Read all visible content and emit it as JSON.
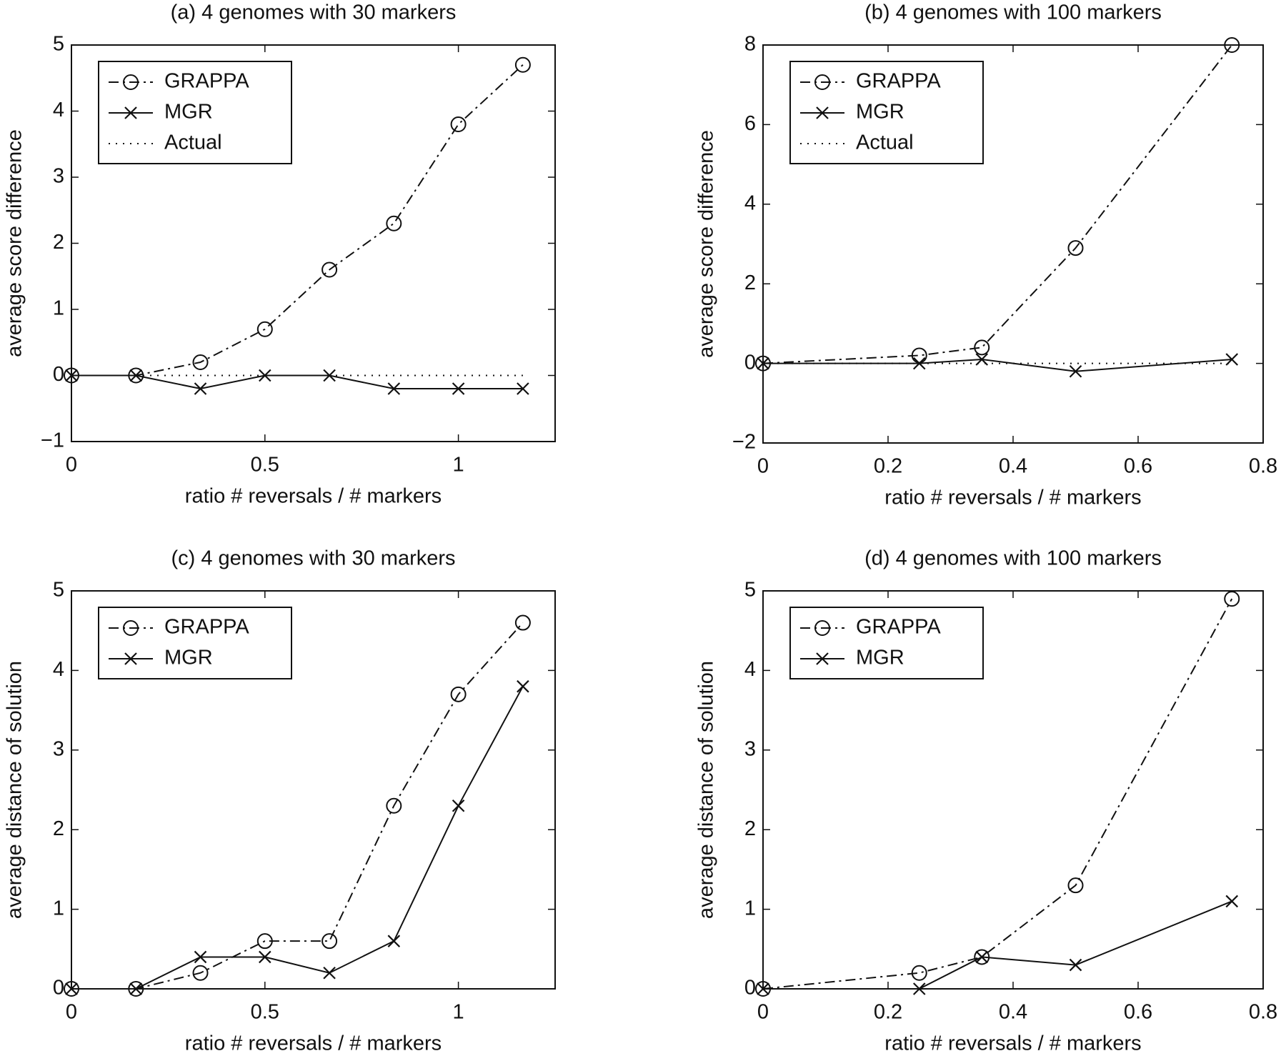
{
  "chart_data": [
    {
      "type": "line",
      "title": "(a)  4 genomes with 30 markers",
      "x_label": "ratio # reversals / # markers",
      "y_label": "average score difference",
      "x": [
        0,
        0.1667,
        0.3333,
        0.5,
        0.6667,
        0.8333,
        1,
        1.1667
      ],
      "series": [
        {
          "name": "GRAPPA",
          "color": "#111111",
          "linestyle": "dashdot",
          "marker": "circle",
          "values": [
            0,
            0,
            0.2,
            0.7,
            1.6,
            2.3,
            3.8,
            4.7
          ]
        },
        {
          "name": "MGR",
          "color": "#111111",
          "linestyle": "solid",
          "marker": "x",
          "values": [
            0,
            0,
            -0.2,
            0,
            0,
            -0.2,
            -0.2,
            -0.2
          ]
        },
        {
          "name": "Actual",
          "color": "#111111",
          "linestyle": "dotted",
          "marker": "none",
          "values": [
            0,
            0,
            0,
            0,
            0,
            0,
            0,
            0
          ]
        }
      ],
      "xlim": [
        0,
        1.25
      ],
      "xticks": [
        0,
        0.5,
        1
      ],
      "ylim": [
        -1,
        5
      ],
      "yticks": [
        {
          "value": -1,
          "label": "−1"
        },
        0,
        1,
        2,
        3,
        4,
        5
      ],
      "legend": "upper left"
    },
    {
      "type": "line",
      "title": "(b)  4 genomes with 100 markers",
      "x_label": "ratio # reversals / # markers",
      "y_label": "average score difference",
      "x": [
        0,
        0.25,
        0.35,
        0.5,
        0.75
      ],
      "series": [
        {
          "name": "GRAPPA",
          "color": "#111111",
          "linestyle": "dashdot",
          "marker": "circle",
          "values": [
            0,
            0.2,
            0.4,
            2.9,
            8
          ]
        },
        {
          "name": "MGR",
          "color": "#111111",
          "linestyle": "solid",
          "marker": "x",
          "values": [
            0,
            0,
            0.1,
            -0.2,
            0.1
          ]
        },
        {
          "name": "Actual",
          "color": "#111111",
          "linestyle": "dotted",
          "marker": "none",
          "values": [
            0,
            0,
            0,
            0,
            0
          ]
        }
      ],
      "xlim": [
        0,
        0.8
      ],
      "xticks": [
        0,
        0.2,
        0.4,
        0.6,
        0.8
      ],
      "ylim": [
        -2,
        8
      ],
      "yticks": [
        {
          "value": -2,
          "label": "−2"
        },
        0,
        2,
        4,
        6,
        8
      ],
      "legend": "upper left"
    },
    {
      "type": "line",
      "title": "(c)  4 genomes with 30 markers",
      "x_label": "ratio # reversals / # markers",
      "y_label": "average distance of solution",
      "x": [
        0,
        0.1667,
        0.3333,
        0.5,
        0.6667,
        0.8333,
        1,
        1.1667
      ],
      "series": [
        {
          "name": "GRAPPA",
          "color": "#111111",
          "linestyle": "dashdot",
          "marker": "circle",
          "values": [
            0,
            0,
            0.2,
            0.6,
            0.6,
            2.3,
            3.7,
            4.6
          ]
        },
        {
          "name": "MGR",
          "color": "#111111",
          "linestyle": "solid",
          "marker": "x",
          "values": [
            0,
            0,
            0.4,
            0.4,
            0.2,
            0.6,
            2.3,
            3.8
          ]
        }
      ],
      "xlim": [
        0,
        1.25
      ],
      "xticks": [
        0,
        0.5,
        1
      ],
      "ylim": [
        0,
        5
      ],
      "yticks": [
        0,
        1,
        2,
        3,
        4,
        5
      ],
      "legend": "upper left"
    },
    {
      "type": "line",
      "title": "(d)  4 genomes with 100 markers",
      "x_label": "ratio # reversals / # markers",
      "y_label": "average distance of solution",
      "x": [
        0,
        0.25,
        0.35,
        0.5,
        0.75
      ],
      "series": [
        {
          "name": "GRAPPA",
          "color": "#111111",
          "linestyle": "dashdot",
          "marker": "circle",
          "values": [
            0,
            0.2,
            0.4,
            1.3,
            4.9
          ]
        },
        {
          "name": "MGR",
          "color": "#111111",
          "linestyle": "solid",
          "marker": "x",
          "values": [
            0,
            0,
            0.4,
            0.3,
            1.1
          ]
        }
      ],
      "xlim": [
        0,
        0.8
      ],
      "xticks": [
        0,
        0.2,
        0.4,
        0.6,
        0.8
      ],
      "ylim": [
        0,
        5
      ],
      "yticks": [
        0,
        1,
        2,
        3,
        4,
        5
      ],
      "legend": "upper left"
    }
  ]
}
